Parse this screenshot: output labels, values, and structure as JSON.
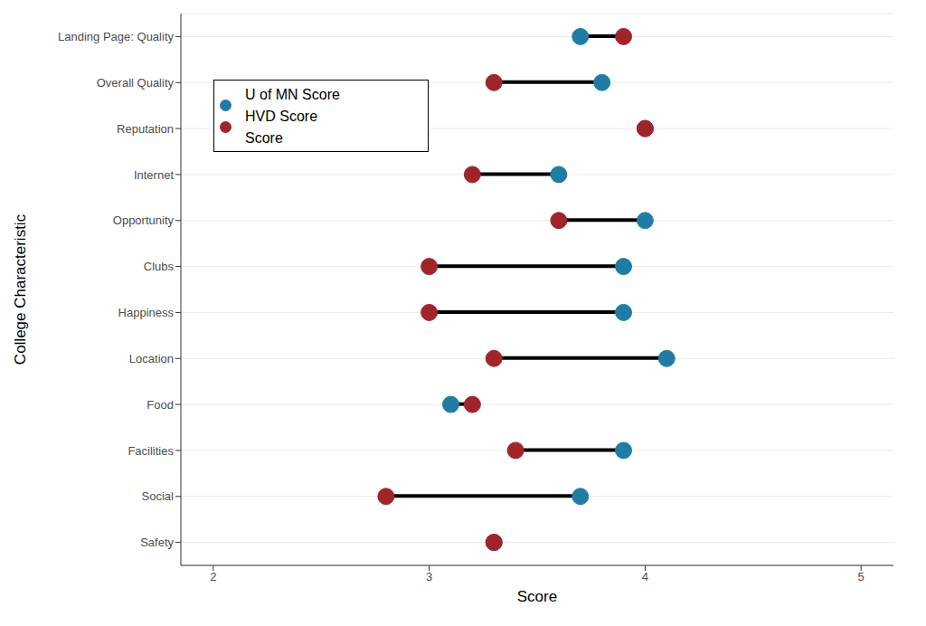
{
  "chart_data": {
    "type": "dumbbell",
    "orientation": "horizontal",
    "x_label": "Score",
    "y_label": "College Characteristic",
    "categories": [
      "Landing Page: Quality",
      "Overall Quality",
      "Reputation",
      "Internet",
      "Opportunity",
      "Clubs",
      "Happiness",
      "Location",
      "Food",
      "Facilities",
      "Social",
      "Safety"
    ],
    "series": [
      {
        "name": "U of MN Score",
        "color": "#217ca3",
        "marker": "circle",
        "values": [
          3.7,
          3.8,
          4.0,
          3.6,
          4.0,
          3.9,
          3.9,
          4.1,
          3.1,
          3.9,
          3.7,
          3.3
        ]
      },
      {
        "name": "HVD Score Score",
        "color": "#a0252a",
        "marker": "circle",
        "values": [
          3.9,
          3.3,
          4.0,
          3.2,
          3.6,
          3.0,
          3.0,
          3.3,
          3.2,
          3.4,
          2.8,
          3.3
        ]
      }
    ],
    "xlim": [
      1.85,
      5.15
    ],
    "xticks": [
      2,
      3,
      4,
      5
    ],
    "grid": true,
    "legend": "upper left"
  }
}
